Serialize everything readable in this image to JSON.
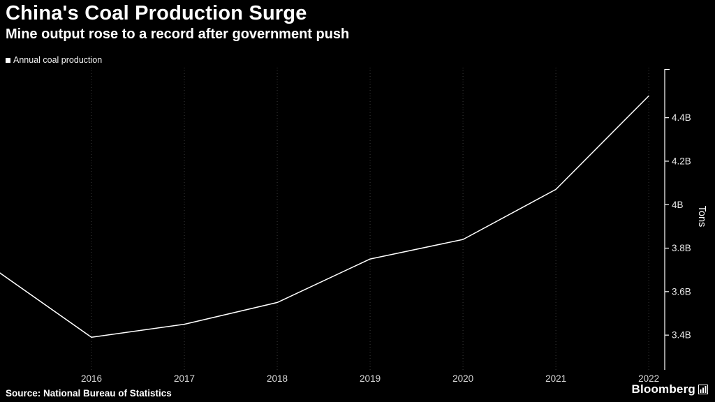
{
  "header": {
    "title": "China's Coal Production Surge",
    "subtitle": "Mine output rose to a record after government push"
  },
  "legend": {
    "label": "Annual coal production"
  },
  "footer": {
    "source": "Source: National Bureau of Statistics",
    "brand": "Bloomberg"
  },
  "colors": {
    "background": "#000000",
    "line": "#ffffff",
    "axis": "#ffffff",
    "grid": "#3a3a3a",
    "tick_text": "#e8e8e8"
  },
  "chart_data": {
    "type": "line",
    "title": "China's Coal Production Surge",
    "subtitle": "Mine output rose to a record after government push",
    "ylabel": "Tons",
    "xlabel": "",
    "legend_position": "top-left",
    "grid": "vertical-dotted",
    "xlim": [
      2015.015,
      2022.172
    ],
    "ylim": [
      3.24,
      4.63
    ],
    "x_ticks": [
      2016,
      2017,
      2018,
      2019,
      2020,
      2021,
      2022
    ],
    "y_ticks": [
      {
        "value": 3.4,
        "label": "3.4B"
      },
      {
        "value": 3.6,
        "label": "3.6B"
      },
      {
        "value": 3.8,
        "label": "3.8B"
      },
      {
        "value": 4.0,
        "label": "4B"
      },
      {
        "value": 4.2,
        "label": "4.2B"
      },
      {
        "value": 4.4,
        "label": "4.4B"
      }
    ],
    "series": [
      {
        "name": "Annual coal production",
        "x": [
          2015,
          2016,
          2017,
          2018,
          2019,
          2020,
          2021,
          2022
        ],
        "values": [
          3.69,
          3.39,
          3.45,
          3.55,
          3.75,
          3.84,
          4.07,
          4.5
        ]
      }
    ]
  }
}
